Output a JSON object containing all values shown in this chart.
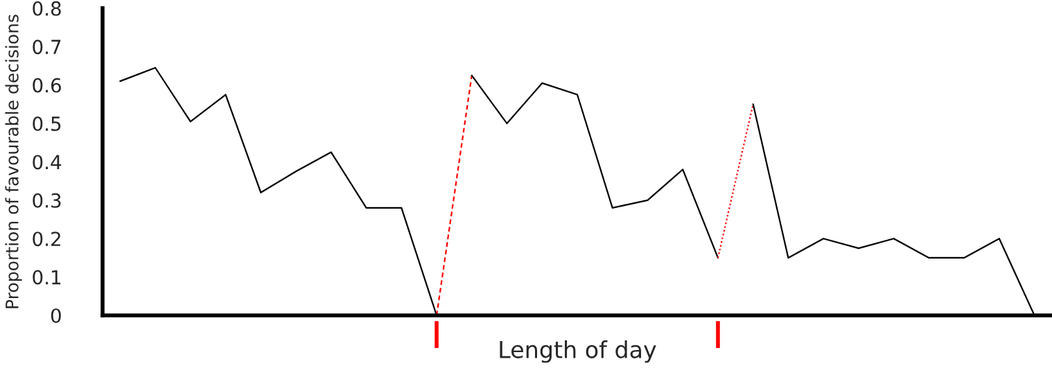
{
  "chart_data": {
    "type": "line",
    "xlabel": "Length of day",
    "ylabel": "Proportion of favourable decisions",
    "categories": [
      null,
      null,
      null,
      null,
      null,
      null,
      null,
      null,
      null,
      null,
      null,
      null,
      null,
      null,
      null,
      null,
      null,
      null,
      null,
      null,
      null,
      null,
      null,
      null,
      null,
      null,
      null
    ],
    "series": [
      {
        "color": "#000000",
        "line_style": "solid",
        "values": [
          0.61,
          0.645,
          0.505,
          0.575,
          0.32,
          0.375,
          0.425,
          0.28,
          0.28,
          0,
          null,
          null,
          null,
          null,
          null,
          null,
          null,
          null,
          null,
          null,
          null,
          null,
          null,
          null,
          null,
          null,
          null
        ]
      },
      {
        "color": "#ff0000",
        "line_style": "dashed",
        "values": [
          null,
          null,
          null,
          null,
          null,
          null,
          null,
          null,
          null,
          0,
          0.625,
          null,
          null,
          null,
          null,
          null,
          null,
          null,
          null,
          null,
          null,
          null,
          null,
          null,
          null,
          null,
          null
        ]
      },
      {
        "color": "#000000",
        "line_style": "solid",
        "values": [
          null,
          null,
          null,
          null,
          null,
          null,
          null,
          null,
          null,
          null,
          0.625,
          0.5,
          0.605,
          0.575,
          0.28,
          0.3,
          0.38,
          0.15,
          null,
          null,
          null,
          null,
          null,
          null,
          null,
          null,
          null
        ]
      },
      {
        "color": "#ff0000",
        "line_style": "dotted",
        "values": [
          null,
          null,
          null,
          null,
          null,
          null,
          null,
          null,
          null,
          null,
          null,
          null,
          null,
          null,
          null,
          null,
          null,
          0.15,
          0.55,
          null,
          null,
          null,
          null,
          null,
          null,
          null,
          null
        ]
      },
      {
        "color": "#000000",
        "line_style": "solid",
        "values": [
          null,
          null,
          null,
          null,
          null,
          null,
          null,
          null,
          null,
          null,
          null,
          null,
          null,
          null,
          null,
          null,
          null,
          null,
          0.55,
          0.15,
          0.2,
          0.175,
          0.2,
          0.15,
          0.15,
          0.2,
          0
        ]
      }
    ],
    "ylim": [
      0,
      0.8
    ],
    "yticks": [
      0,
      0.1,
      0.2,
      0.3,
      0.4,
      0.5,
      0.6,
      0.7,
      0.8
    ],
    "tick_labels": "y",
    "grid": false,
    "legend": false,
    "marker": "none"
  }
}
